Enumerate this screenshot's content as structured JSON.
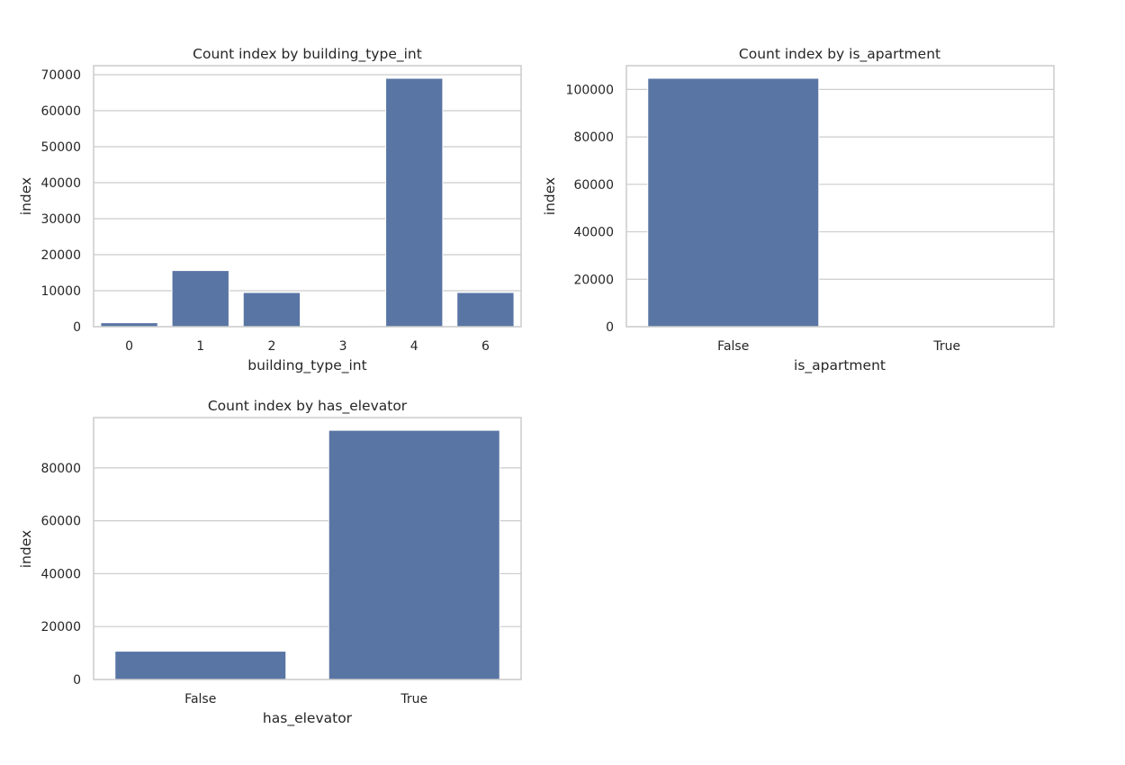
{
  "colors": {
    "bar": "#5975a4",
    "grid": "#cccccc",
    "text": "#262626"
  },
  "chart_data": [
    {
      "type": "bar",
      "title": "Count index by building_type_int",
      "xlabel": "building_type_int",
      "ylabel": "index",
      "categories": [
        "0",
        "1",
        "2",
        "3",
        "4",
        "6"
      ],
      "values": [
        1100,
        15600,
        9500,
        50,
        69000,
        9500
      ],
      "ylim": [
        0,
        72500
      ],
      "yticks": [
        0,
        10000,
        20000,
        30000,
        40000,
        50000,
        60000,
        70000
      ],
      "grid": true
    },
    {
      "type": "bar",
      "title": "Count index by is_apartment",
      "xlabel": "is_apartment",
      "ylabel": "index",
      "categories": [
        "False",
        "True"
      ],
      "values": [
        104700,
        0
      ],
      "ylim": [
        0,
        110000
      ],
      "yticks": [
        0,
        20000,
        40000,
        60000,
        80000,
        100000
      ],
      "grid": true
    },
    {
      "type": "bar",
      "title": "Count index by has_elevator",
      "xlabel": "has_elevator",
      "ylabel": "index",
      "categories": [
        "False",
        "True"
      ],
      "values": [
        10700,
        94200
      ],
      "ylim": [
        0,
        99000
      ],
      "yticks": [
        0,
        20000,
        40000,
        60000,
        80000
      ],
      "grid": true
    }
  ]
}
